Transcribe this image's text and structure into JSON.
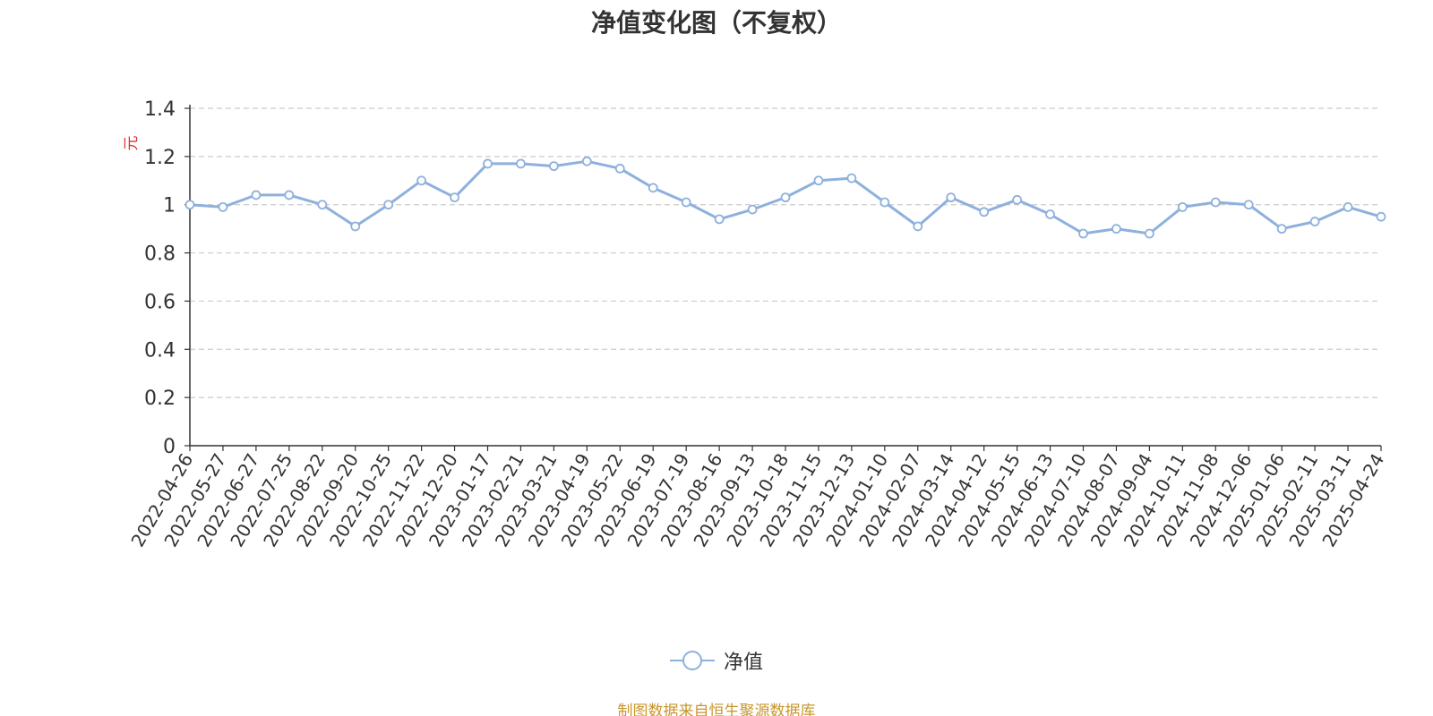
{
  "title": "净值变化图（不复权）",
  "source_note": "制图数据来自恒生聚源数据库",
  "colors": {
    "series": "#8eb0dd",
    "unit": "#e03030",
    "source": "#c8962a",
    "grid": "#cccccc",
    "axis": "#333333"
  },
  "chart_data": {
    "type": "line",
    "title": "净值变化图（不复权）",
    "xlabel": "",
    "ylabel": "元",
    "ylim": [
      0,
      1.4
    ],
    "yticks": [
      "0",
      "0.2",
      "0.4",
      "0.6",
      "0.8",
      "1",
      "1.2",
      "1.4"
    ],
    "grid": true,
    "legend_position": "bottom-center",
    "categories": [
      "2022-04-26",
      "2022-05-27",
      "2022-06-27",
      "2022-07-25",
      "2022-08-22",
      "2022-09-20",
      "2022-10-25",
      "2022-11-22",
      "2022-12-20",
      "2023-01-17",
      "2023-02-21",
      "2023-03-21",
      "2023-04-19",
      "2023-05-22",
      "2023-06-19",
      "2023-07-19",
      "2023-08-16",
      "2023-09-13",
      "2023-10-18",
      "2023-11-15",
      "2023-12-13",
      "2024-01-10",
      "2024-02-07",
      "2024-03-14",
      "2024-04-12",
      "2024-05-15",
      "2024-06-13",
      "2024-07-10",
      "2024-08-07",
      "2024-09-04",
      "2024-10-11",
      "2024-11-08",
      "2024-12-06",
      "2025-01-06",
      "2025-02-11",
      "2025-03-11",
      "2025-04-24"
    ],
    "series": [
      {
        "name": "净值",
        "values": [
          1.0,
          0.99,
          1.04,
          1.04,
          1.0,
          0.91,
          1.0,
          1.1,
          1.03,
          1.17,
          1.17,
          1.16,
          1.18,
          1.15,
          1.07,
          1.01,
          0.94,
          0.98,
          1.03,
          1.1,
          1.11,
          1.01,
          0.91,
          1.03,
          0.97,
          1.02,
          0.96,
          0.88,
          0.9,
          0.88,
          0.99,
          1.01,
          1.0,
          0.9,
          0.93,
          0.99,
          0.95
        ]
      }
    ]
  }
}
